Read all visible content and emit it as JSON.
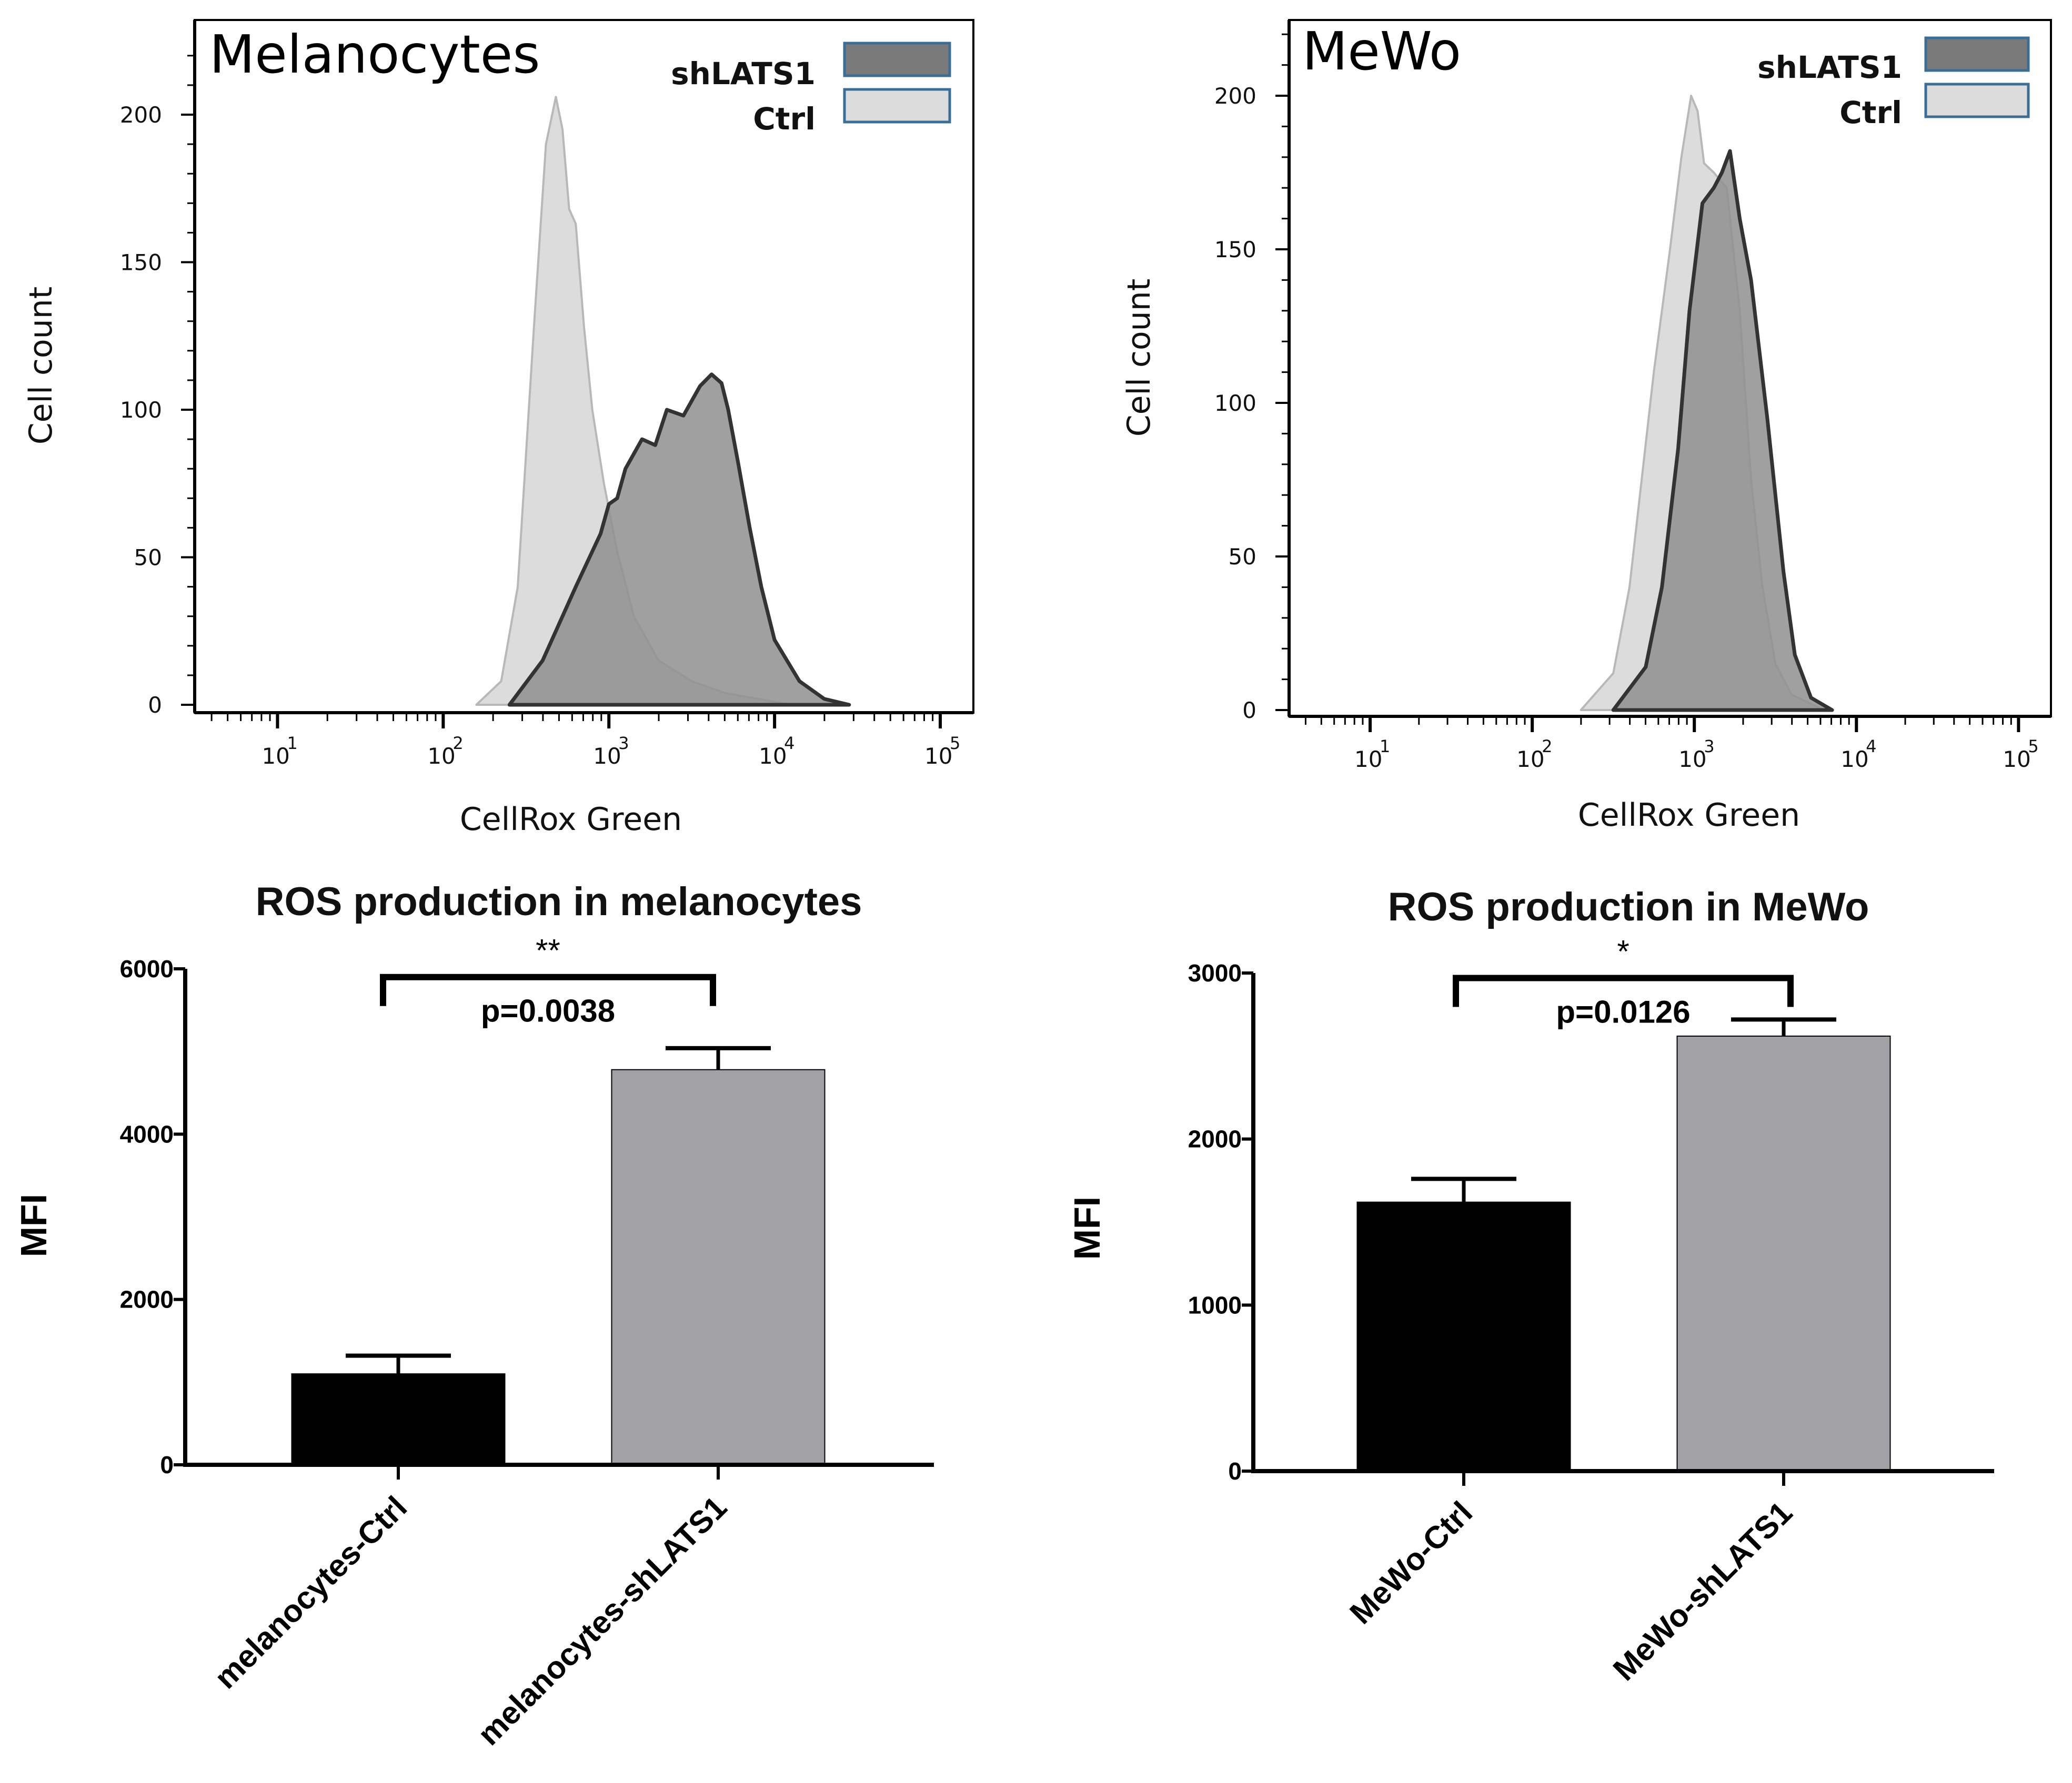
{
  "chart_data": [
    {
      "type": "area",
      "title": "Melanocytes",
      "xlabel": "CellRox Green",
      "ylabel": "Cell count",
      "xscale": "log",
      "xlim_log10": [
        0.5,
        5.2
      ],
      "ylim": [
        0,
        225
      ],
      "yticks": [
        0,
        50,
        100,
        150,
        200
      ],
      "xtick_exponents": [
        "1",
        "2",
        "3",
        "4",
        "5"
      ],
      "xtick_base": "10",
      "legend": [
        "shLATS1",
        "Ctrl"
      ],
      "legend_position": "top-right",
      "colors": {
        "shLATS1": "#8f8f8f",
        "Ctrl": "#dcdcdc",
        "shLATS1_legend": "#7a7a7a"
      },
      "series": [
        {
          "name": "Ctrl",
          "x_log10": [
            2.2,
            2.35,
            2.45,
            2.55,
            2.62,
            2.68,
            2.72,
            2.76,
            2.8,
            2.85,
            2.9,
            2.97,
            3.05,
            3.15,
            3.3,
            3.5,
            3.7,
            3.9,
            4.1
          ],
          "y": [
            0,
            8,
            40,
            130,
            190,
            206,
            195,
            168,
            163,
            128,
            100,
            75,
            52,
            30,
            15,
            8,
            4,
            2,
            0
          ]
        },
        {
          "name": "shLATS1",
          "x_log10": [
            2.4,
            2.6,
            2.8,
            2.95,
            3.0,
            3.05,
            3.1,
            3.15,
            3.2,
            3.28,
            3.35,
            3.45,
            3.55,
            3.62,
            3.68,
            3.72,
            3.78,
            3.85,
            3.92,
            4.0,
            4.15,
            4.3,
            4.45
          ],
          "y": [
            0,
            15,
            40,
            58,
            68,
            70,
            80,
            85,
            90,
            88,
            100,
            98,
            108,
            112,
            109,
            100,
            82,
            60,
            40,
            22,
            8,
            2,
            0
          ]
        }
      ]
    },
    {
      "type": "area",
      "title": "MeWo",
      "xlabel": "CellRox Green",
      "ylabel": "Cell count",
      "xscale": "log",
      "xlim_log10": [
        0.5,
        5.2
      ],
      "ylim": [
        0,
        225
      ],
      "yticks": [
        0,
        50,
        100,
        150,
        200
      ],
      "xtick_exponents": [
        "1",
        "2",
        "3",
        "4",
        "5"
      ],
      "xtick_base": "10",
      "legend": [
        "shLATS1",
        "Ctrl"
      ],
      "legend_position": "top-right",
      "colors": {
        "shLATS1": "#8f8f8f",
        "Ctrl": "#dcdcdc",
        "shLATS1_legend": "#7a7a7a"
      },
      "series": [
        {
          "name": "Ctrl",
          "x_log10": [
            2.3,
            2.5,
            2.6,
            2.75,
            2.85,
            2.92,
            2.98,
            3.02,
            3.06,
            3.12,
            3.2,
            3.28,
            3.35,
            3.42,
            3.5,
            3.6,
            3.8
          ],
          "y": [
            0,
            12,
            40,
            110,
            150,
            180,
            200,
            195,
            178,
            175,
            170,
            130,
            75,
            40,
            15,
            5,
            0
          ]
        },
        {
          "name": "shLATS1",
          "x_log10": [
            2.5,
            2.7,
            2.8,
            2.9,
            2.97,
            3.05,
            3.12,
            3.17,
            3.22,
            3.28,
            3.35,
            3.45,
            3.55,
            3.62,
            3.72,
            3.85
          ],
          "y": [
            0,
            14,
            40,
            85,
            130,
            165,
            170,
            175,
            182,
            160,
            140,
            95,
            45,
            18,
            4,
            0
          ]
        }
      ]
    },
    {
      "type": "bar",
      "title": "ROS production in melanocytes",
      "ylabel": "MFI",
      "xlabel": "",
      "ylim": [
        0,
        6000
      ],
      "yticks": [
        0,
        2000,
        4000,
        6000
      ],
      "categories": [
        "melanocytes-Ctrl",
        "melanocytes-shLATS1"
      ],
      "values": [
        1100,
        4780
      ],
      "errors": [
        220,
        260
      ],
      "colors": [
        "#000000",
        "#a2a2a6"
      ],
      "significance": {
        "stars": "**",
        "p_text": "p=0.0038",
        "bracket_y": 5900
      }
    },
    {
      "type": "bar",
      "title": "ROS production in MeWo",
      "ylabel": "MFI",
      "xlabel": "",
      "ylim": [
        0,
        3000
      ],
      "yticks": [
        0,
        1000,
        2000,
        3000
      ],
      "categories": [
        "MeWo-Ctrl",
        "MeWo-shLATS1"
      ],
      "values": [
        1620,
        2620
      ],
      "errors": [
        140,
        100
      ],
      "colors": [
        "#000000",
        "#a2a2a6"
      ],
      "significance": {
        "stars": "*",
        "p_text": "p=0.0126",
        "bracket_y": 2970
      }
    }
  ]
}
